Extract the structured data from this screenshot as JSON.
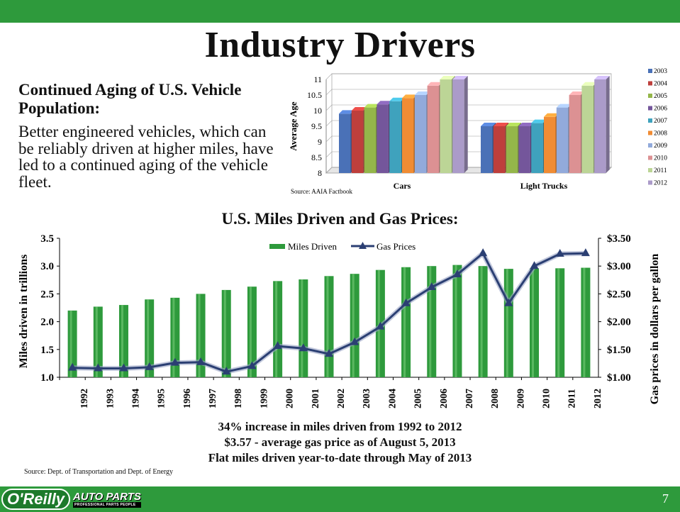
{
  "slide": {
    "title": "Industry Drivers",
    "subheading": "Continued Aging of U.S. Vehicle Population:",
    "body": "Better engineered vehicles, which can be reliably driven at higher miles, have led to a continued aging of the vehicle fleet.",
    "chart_title": "U.S. Miles Driven and Gas Prices:",
    "footnotes": [
      "34% increase in miles driven from 1992 to 2012",
      "$3.57 - average gas price as of August 5, 2013",
      "Flat miles driven year-to-date through May of 2013"
    ],
    "source_bottom": "Source:  Dept. of Transportation and Dept. of Energy",
    "page_number": "7",
    "logo_text": "O'Reilly",
    "logo_main": "AUTO PARTS",
    "logo_tagline": "PROFESSIONAL PARTS PEOPLE",
    "colors": {
      "bar_green": "#2e9a3c",
      "line_blue": "#2b3f73"
    }
  },
  "chart_data": [
    {
      "type": "bar",
      "title": "",
      "ylabel": "Average Age",
      "xlabel": "",
      "source": "Source:  AAIA Factbook",
      "ylim": [
        8,
        11
      ],
      "yticks": [
        "8",
        "8.5",
        "9",
        "9.5",
        "10",
        "10.5",
        "11"
      ],
      "categories": [
        "Cars",
        "Light Trucks"
      ],
      "series": [
        {
          "name": "2003",
          "color": "#4a71b7",
          "values": [
            9.9,
            9.5
          ]
        },
        {
          "name": "2004",
          "color": "#be3f3c",
          "values": [
            10.0,
            9.5
          ]
        },
        {
          "name": "2005",
          "color": "#94b64a",
          "values": [
            10.1,
            9.5
          ]
        },
        {
          "name": "2006",
          "color": "#74569b",
          "values": [
            10.2,
            9.5
          ]
        },
        {
          "name": "2007",
          "color": "#3fa2bd",
          "values": [
            10.3,
            9.6
          ]
        },
        {
          "name": "2008",
          "color": "#f08c34",
          "values": [
            10.4,
            9.8
          ]
        },
        {
          "name": "2009",
          "color": "#92aadb",
          "values": [
            10.5,
            10.1
          ]
        },
        {
          "name": "2010",
          "color": "#dc9193",
          "values": [
            10.8,
            10.5
          ]
        },
        {
          "name": "2011",
          "color": "#bcd596",
          "values": [
            11.0,
            10.8
          ]
        },
        {
          "name": "2012",
          "color": "#ab9bc9",
          "values": [
            11.0,
            11.0
          ]
        }
      ]
    },
    {
      "type": "bar",
      "title": "U.S. Miles Driven and Gas Prices:",
      "xlabel": "",
      "ylabel": "Miles driven in trillions",
      "y2label": "Gas prices in dollars per gallon",
      "ylim": [
        1.0,
        3.5
      ],
      "y2lim": [
        1.0,
        3.5
      ],
      "yticks": [
        "1.0",
        "1.5",
        "2.0",
        "2.5",
        "3.0",
        "3.5"
      ],
      "y2ticks": [
        "$1.00",
        "$1.50",
        "$2.00",
        "$2.50",
        "$3.00",
        "$3.50"
      ],
      "categories": [
        "1992",
        "1993",
        "1994",
        "1995",
        "1996",
        "1997",
        "1998",
        "1999",
        "2000",
        "2001",
        "2002",
        "2003",
        "2004",
        "2005",
        "2006",
        "2007",
        "2008",
        "2009",
        "2010",
        "2011",
        "2012"
      ],
      "series": [
        {
          "name": "Miles Driven",
          "type": "bar",
          "axis": "left",
          "values": [
            2.2,
            2.27,
            2.3,
            2.4,
            2.43,
            2.5,
            2.57,
            2.63,
            2.73,
            2.76,
            2.82,
            2.86,
            2.93,
            2.98,
            3.0,
            3.02,
            3.0,
            2.95,
            2.96,
            2.96,
            2.97
          ]
        },
        {
          "name": "Gas Prices",
          "type": "line",
          "axis": "right",
          "values": [
            1.17,
            1.16,
            1.16,
            1.18,
            1.26,
            1.27,
            1.1,
            1.2,
            1.56,
            1.52,
            1.42,
            1.63,
            1.91,
            2.33,
            2.62,
            2.85,
            3.23,
            2.33,
            3.0,
            3.22,
            3.23
          ]
        }
      ]
    }
  ]
}
